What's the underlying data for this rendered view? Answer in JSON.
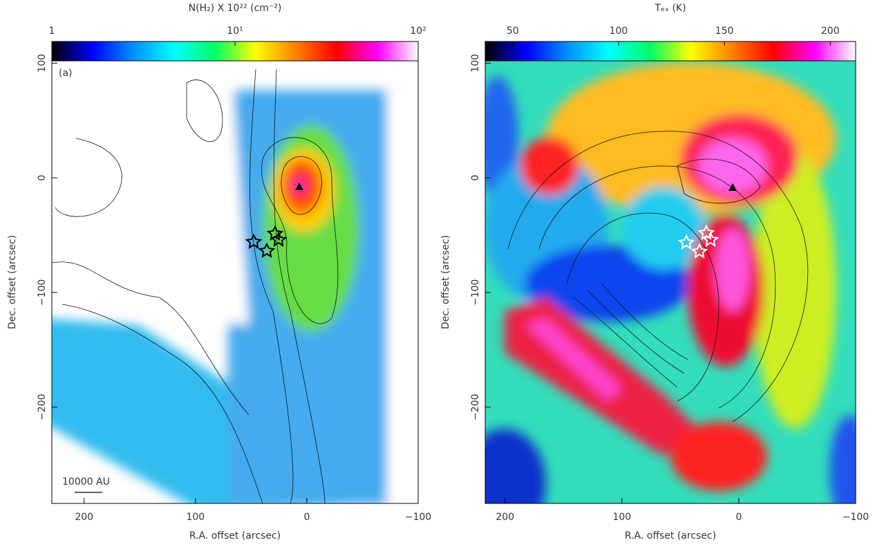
{
  "chart_data": [
    {
      "type": "map",
      "colorbar_label": "N(H₂) X 10²² (cm⁻²)",
      "annotation": "(a)",
      "scale_bar": "10000 AU",
      "x_label": "R.A. offset (arcsec)",
      "y_label": "Dec. offset (arcsec)",
      "clim": [
        1,
        100
      ],
      "clog": true,
      "cticks": [
        1,
        {
          "value": 10,
          "label": "10¹"
        },
        {
          "value": 100,
          "label": "10²"
        }
      ],
      "colormap": [
        "#000000",
        "#0000ff",
        "#0090ff",
        "#00ffff",
        "#00ff66",
        "#ffff00",
        "#ff8000",
        "#ff0000",
        "#ff00ff",
        "#ffffff"
      ],
      "xlim": [
        229,
        -100
      ],
      "xticks": [
        200,
        100,
        0,
        {
          "value": -100,
          "label": "−100"
        }
      ],
      "ylim": [
        -284,
        102
      ],
      "yticks": [
        100,
        0,
        {
          "value": -100,
          "label": "−100"
        },
        {
          "value": -200,
          "label": "−200"
        }
      ]
    },
    {
      "type": "map",
      "colorbar_label": "Tₑₓ (K)",
      "x_label": "R.A. offset (arcsec)",
      "y_label": "Dec. offset (arcsec)",
      "clim": [
        37,
        212
      ],
      "clog": false,
      "cticks": [
        50,
        100,
        150,
        200
      ],
      "colormap": [
        "#000000",
        "#0000ff",
        "#0090ff",
        "#00ffff",
        "#00ff66",
        "#ffff00",
        "#ff8000",
        "#ff0000",
        "#ff00ff",
        "#ffffff"
      ],
      "xlim": [
        217,
        -100
      ],
      "xticks": [
        200,
        100,
        0,
        {
          "value": -100,
          "label": "−100"
        }
      ],
      "ylim": [
        -284,
        102
      ],
      "yticks": [
        100,
        0,
        {
          "value": -100,
          "label": "−100"
        },
        {
          "value": -200,
          "label": "−200"
        }
      ]
    }
  ]
}
